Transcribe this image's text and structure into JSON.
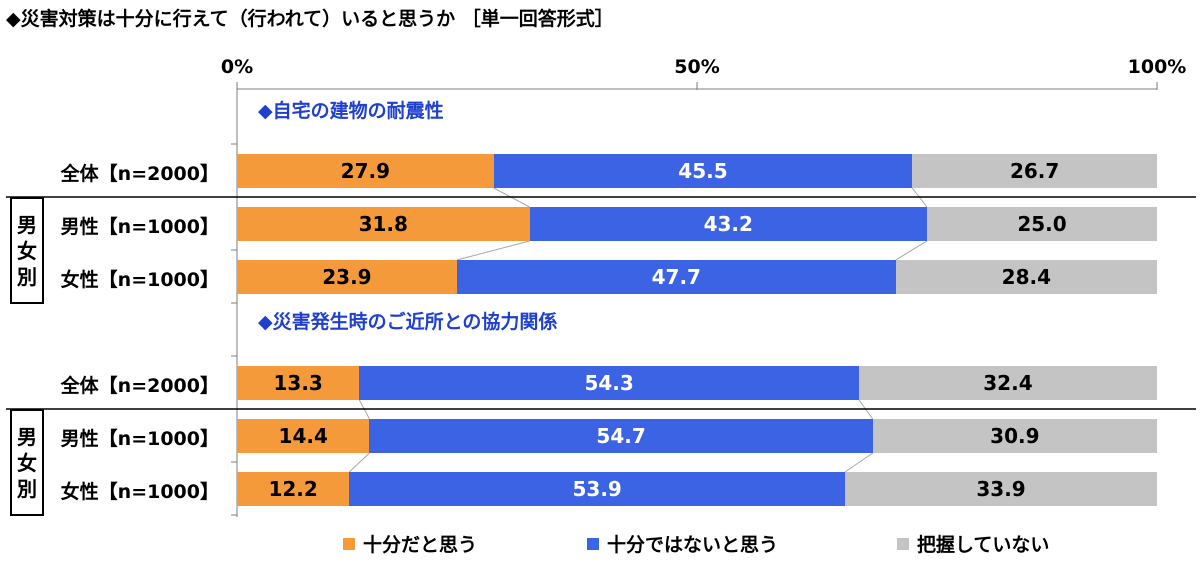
{
  "title": "◆災害対策は十分に行えて（行われて）いると思うか ［単一回答形式］",
  "colors": {
    "series_0": "#f59a3b",
    "series_1": "#3b63e3",
    "series_2": "#c4c4c4"
  },
  "chart_data": {
    "type": "bar",
    "orientation": "horizontal-stacked-percent",
    "title": "◆災害対策は十分に行えて（行われて）いると思うか ［単一回答形式］",
    "x_ticks": [
      "0%",
      "50%",
      "100%"
    ],
    "xlim": [
      0,
      100
    ],
    "legend_position": "bottom",
    "series_names": [
      "十分だと思う",
      "十分ではないと思う",
      "把握していない"
    ],
    "sections": [
      {
        "title": "◆自宅の建物の耐震性",
        "rows": [
          {
            "label": "全体【n=2000】",
            "values": [
              27.9,
              45.5,
              26.7
            ],
            "labels": [
              "27.9",
              "45.5",
              "26.7"
            ]
          },
          {
            "label": "男性【n=1000】",
            "values": [
              31.8,
              43.2,
              25.0
            ],
            "labels": [
              "31.8",
              "43.2",
              "25.0"
            ]
          },
          {
            "label": "女性【n=1000】",
            "values": [
              23.9,
              47.7,
              28.4
            ],
            "labels": [
              "23.9",
              "47.7",
              "28.4"
            ]
          }
        ],
        "group_label": "男女別"
      },
      {
        "title": "◆災害発生時のご近所との協力関係",
        "rows": [
          {
            "label": "全体【n=2000】",
            "values": [
              13.3,
              54.3,
              32.4
            ],
            "labels": [
              "13.3",
              "54.3",
              "32.4"
            ]
          },
          {
            "label": "男性【n=1000】",
            "values": [
              14.4,
              54.7,
              30.9
            ],
            "labels": [
              "14.4",
              "54.7",
              "30.9"
            ]
          },
          {
            "label": "女性【n=1000】",
            "values": [
              12.2,
              53.9,
              33.9
            ],
            "labels": [
              "12.2",
              "53.9",
              "33.9"
            ]
          }
        ],
        "group_label": "男女別"
      }
    ]
  }
}
